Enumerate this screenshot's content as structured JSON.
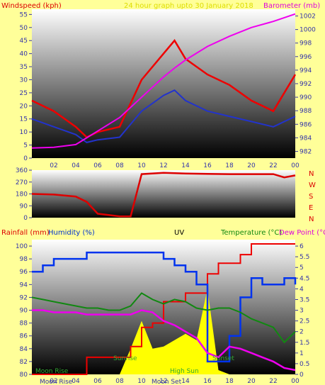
{
  "header": {
    "windspeed_label": "Windspeed (kph)",
    "title": "24 hour graph upto 30 January 2018",
    "barometer_label": "Barometer (mb)"
  },
  "wind_dir_labels": [
    "N",
    "W",
    "S",
    "E",
    "N"
  ],
  "bottom_header": {
    "rainfall": "Rainfall (mm)",
    "humidity": "Humidity (%)",
    "uv": "UV",
    "temperature": "Temperature (°C)",
    "dewpoint": "Dew Point (°C"
  },
  "annotations": {
    "moon_rise_1": "Moon Rise",
    "moon_rise_2": "Moon Rise",
    "sunrise": "Sunrise",
    "moon_set": "Moon Set",
    "high_sun": "High Sun",
    "sunset": "Sunset"
  },
  "x_ticks": [
    "02",
    "04",
    "06",
    "08",
    "10",
    "12",
    "14",
    "16",
    "18",
    "20",
    "22",
    "00"
  ],
  "colors": {
    "background": "#ffff99",
    "wind_gust": "#ee0000",
    "wind_avg": "#2233cc",
    "barometer": "#ee00ee",
    "wind_dir": "#dd0000",
    "rain": "#ee0000",
    "humidity": "#0033ee",
    "uv": "#ffff00",
    "temperature": "#118811",
    "dewpoint": "#ee00ee"
  },
  "chart_data": [
    {
      "type": "line",
      "x": [
        0,
        2,
        4,
        5,
        6,
        8,
        10,
        12,
        13,
        14,
        16,
        18,
        20,
        22,
        24
      ],
      "series": [
        {
          "values": [
            22,
            18,
            12,
            8,
            10,
            12,
            30,
            40,
            45,
            38,
            32,
            28,
            22,
            18,
            32
          ]
        },
        {
          "values": [
            15,
            12,
            9,
            6,
            7,
            8,
            18,
            24,
            26,
            22,
            18,
            16,
            14,
            12,
            16
          ]
        },
        {
          "values": [
            982.5,
            982.6,
            983.0,
            984.0,
            985.0,
            987.0,
            990.0,
            993.0,
            994.3,
            995.5,
            997.5,
            999.0,
            1000.3,
            1001.2,
            1002.3
          ]
        }
      ],
      "y_left_ticks": [
        0,
        5,
        10,
        15,
        20,
        25,
        30,
        35,
        40,
        45,
        50,
        55
      ],
      "y_right_ticks": [
        982,
        984,
        986,
        988,
        990,
        992,
        994,
        996,
        998,
        1000,
        1002
      ],
      "ylim": [
        0,
        57
      ],
      "ylim_right": [
        981,
        1003
      ]
    },
    {
      "type": "line",
      "x": [
        0,
        2,
        4,
        5,
        6,
        8,
        9,
        10,
        12,
        14,
        16,
        18,
        20,
        22,
        23,
        24
      ],
      "values": [
        180,
        175,
        160,
        120,
        30,
        10,
        10,
        330,
        340,
        335,
        332,
        330,
        330,
        330,
        305,
        320
      ],
      "y_ticks": [
        0,
        90,
        180,
        270,
        360
      ],
      "ylim": [
        0,
        360
      ]
    },
    {
      "type": "line",
      "x": [
        0,
        1,
        2,
        3,
        4,
        5,
        6,
        7,
        8,
        9,
        10,
        11,
        12,
        13,
        14,
        15,
        16,
        17,
        18,
        19,
        20,
        21,
        22,
        23,
        24
      ],
      "series": [
        {
          "values": [
            0,
            0,
            0,
            0,
            0,
            0.8,
            0.8,
            0.8,
            0.8,
            1.3,
            2.2,
            2.4,
            3.4,
            3.4,
            3.8,
            3.8,
            4.7,
            5.2,
            5.2,
            5.6,
            6.1,
            6.1,
            6.1,
            6.1,
            6.1
          ]
        },
        {
          "values": [
            96,
            97,
            98,
            98,
            98,
            99,
            99,
            99,
            99,
            99,
            99,
            99,
            98,
            97,
            96,
            94,
            82,
            82,
            86,
            92,
            95,
            94,
            94,
            95,
            94
          ]
        },
        {
          "values": [
            0,
            0,
            0,
            0,
            0,
            0,
            0,
            0,
            0,
            1.2,
            2.5,
            1.2,
            1.3,
            1.6,
            1.9,
            1.6,
            4.0,
            0.2,
            0,
            0,
            0,
            0,
            0,
            0,
            0
          ]
        },
        {
          "values": [
            3.6,
            3.5,
            3.4,
            3.3,
            3.2,
            3.1,
            3.1,
            3.0,
            3.0,
            3.2,
            3.8,
            3.5,
            3.3,
            3.5,
            3.4,
            3.1,
            3.0,
            3.1,
            3.1,
            2.9,
            2.6,
            2.4,
            2.2,
            1.5,
            2.0
          ]
        },
        {
          "values": [
            3.0,
            3.0,
            2.9,
            2.9,
            2.9,
            2.8,
            2.8,
            2.8,
            2.8,
            2.8,
            3.0,
            2.9,
            2.5,
            2.3,
            2.0,
            1.7,
            1.0,
            0.8,
            1.3,
            1.2,
            1.0,
            0.8,
            0.6,
            0.3,
            0.2
          ]
        }
      ],
      "y_left_ticks": [
        80,
        82,
        84,
        86,
        88,
        90,
        92,
        94,
        96,
        98,
        100
      ],
      "y_right_ticks": [
        0,
        0.5,
        1,
        1.5,
        2,
        2.5,
        3,
        3.5,
        4,
        4.5,
        5,
        5.5,
        6
      ],
      "ylim": [
        80,
        101
      ],
      "ylim_right": [
        0,
        6.3
      ]
    }
  ]
}
